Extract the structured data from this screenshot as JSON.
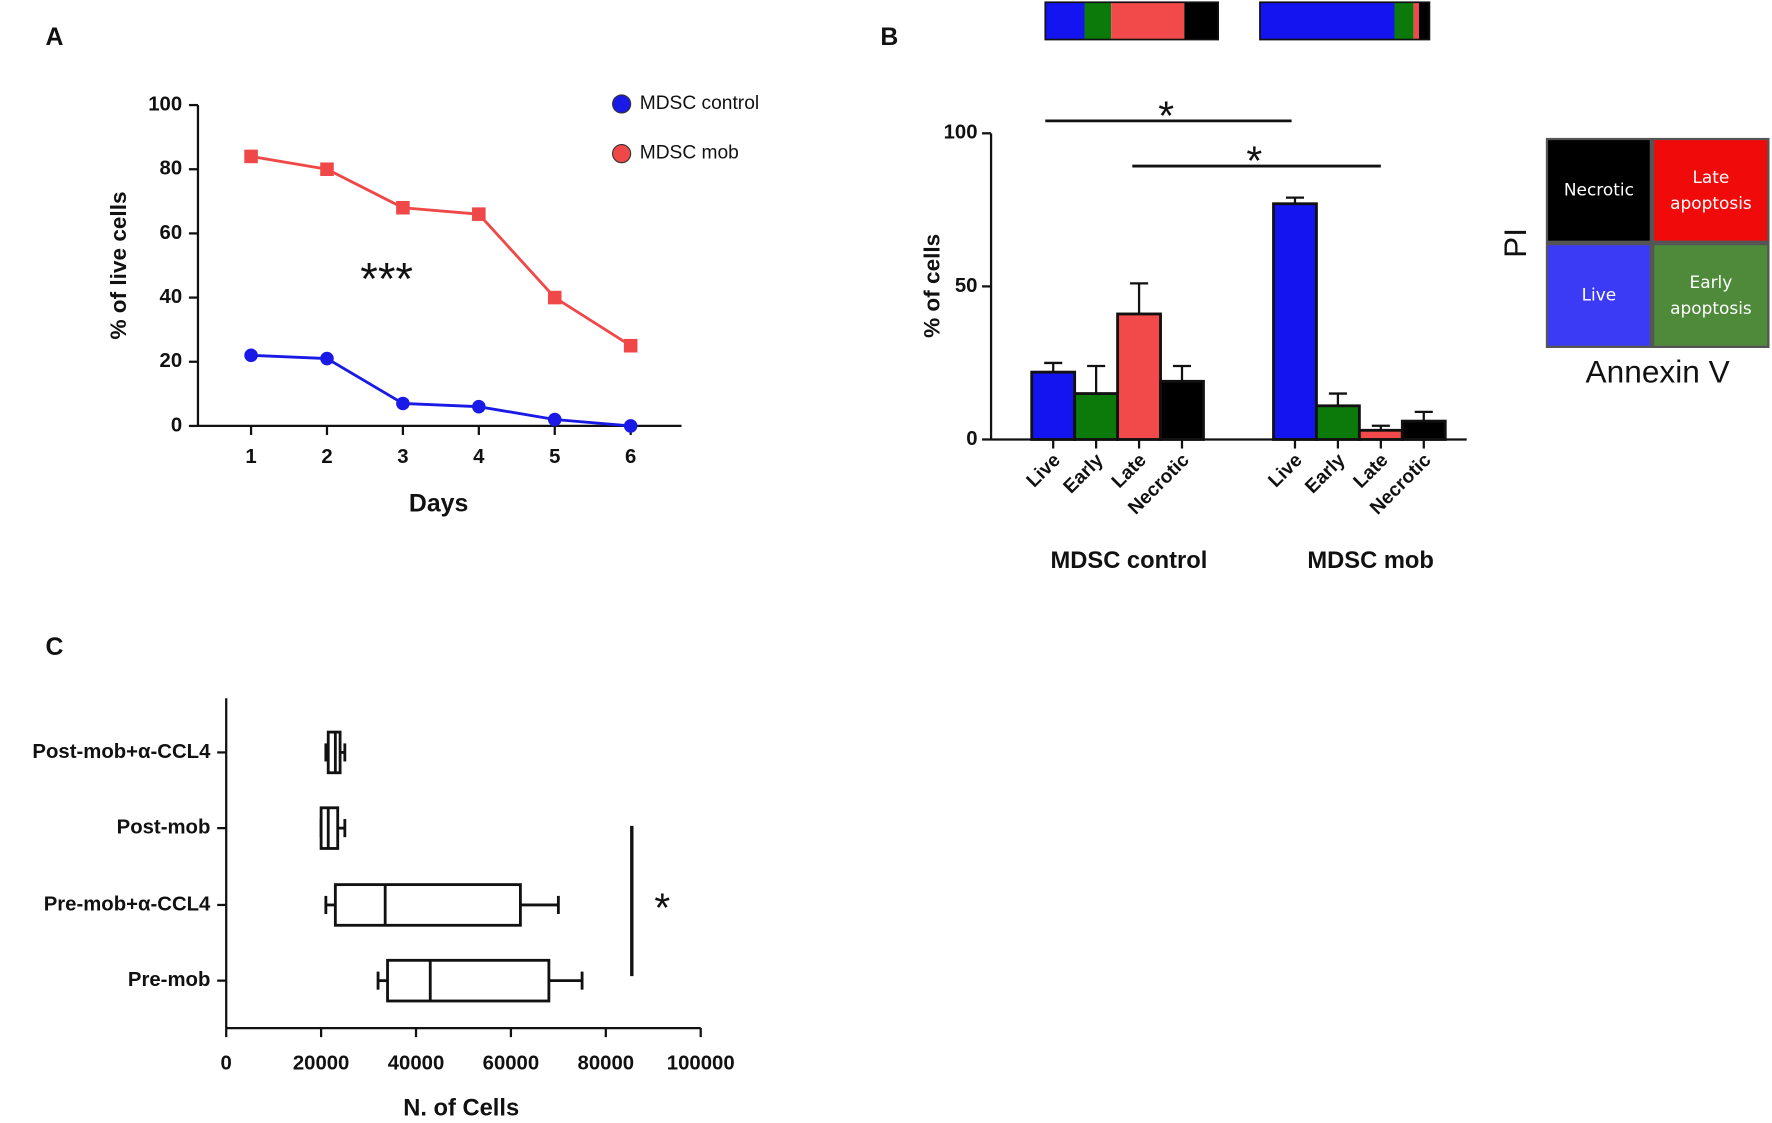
{
  "chart_data": [
    {
      "type": "line",
      "panel": "A",
      "xlabel": "Days",
      "ylabel": "% of live cells",
      "annotation": "***",
      "categories": [
        "1",
        "2",
        "3",
        "4",
        "5",
        "6"
      ],
      "series": [
        {
          "name": "MDSC control",
          "color": "#1a1ae6",
          "marker": "circle",
          "values": [
            22,
            21,
            7,
            6,
            2,
            0
          ]
        },
        {
          "name": "MDSC mob",
          "color": "#f04848",
          "marker": "square",
          "values": [
            84,
            80,
            68,
            66,
            40,
            25
          ]
        }
      ],
      "ylim": [
        0,
        100
      ],
      "yticks": [
        0,
        20,
        40,
        60,
        80,
        100
      ],
      "grid": false
    },
    {
      "type": "bar",
      "panel": "B",
      "ylabel": "% of cells",
      "categories": [
        "Live",
        "Early",
        "Late",
        "Necrotic"
      ],
      "colors": [
        "#1414f0",
        "#0b7a0b",
        "#f24a4a",
        "#000000"
      ],
      "series": [
        {
          "name": "MDSC control",
          "values": [
            22,
            15,
            41,
            19
          ],
          "errors": [
            3,
            9,
            10,
            5
          ]
        },
        {
          "name": "MDSC mob",
          "values": [
            77,
            11,
            3,
            6
          ],
          "errors": [
            2,
            4,
            1.5,
            3
          ]
        }
      ],
      "annotations": [
        "*",
        "*"
      ],
      "ylim": [
        0,
        100
      ],
      "yticks": [
        0,
        50,
        100
      ],
      "grid": false,
      "quadrant_legend": {
        "labels": [
          "Necrotic",
          "Late apoptosis",
          "Live",
          "Early apoptosis"
        ],
        "colors": [
          "#000000",
          "#f00a0a",
          "#3b3bf5",
          "#4e8a3a"
        ],
        "x_label": "Annexin V",
        "y_label": "PI"
      }
    },
    {
      "type": "box",
      "panel": "C",
      "xlabel": "N. of Cells",
      "annotation": "*",
      "categories": [
        "Post-mob+α-CCL4",
        "Post-mob",
        "Pre-mob+α-CCL4",
        "Pre-mob"
      ],
      "boxes": [
        {
          "min": 21000,
          "q1": 21500,
          "median": 23000,
          "q3": 24000,
          "max": 25000
        },
        {
          "min": 20000,
          "q1": 20000,
          "median": 21500,
          "q3": 23500,
          "max": 25000
        },
        {
          "min": 21000,
          "q1": 23000,
          "median": 33500,
          "q3": 62000,
          "max": 70000
        },
        {
          "min": 32000,
          "q1": 34000,
          "median": 43000,
          "q3": 68000,
          "max": 75000
        }
      ],
      "xlim": [
        0,
        100000
      ],
      "xticks": [
        0,
        20000,
        40000,
        60000,
        80000,
        100000
      ],
      "grid": false
    }
  ]
}
